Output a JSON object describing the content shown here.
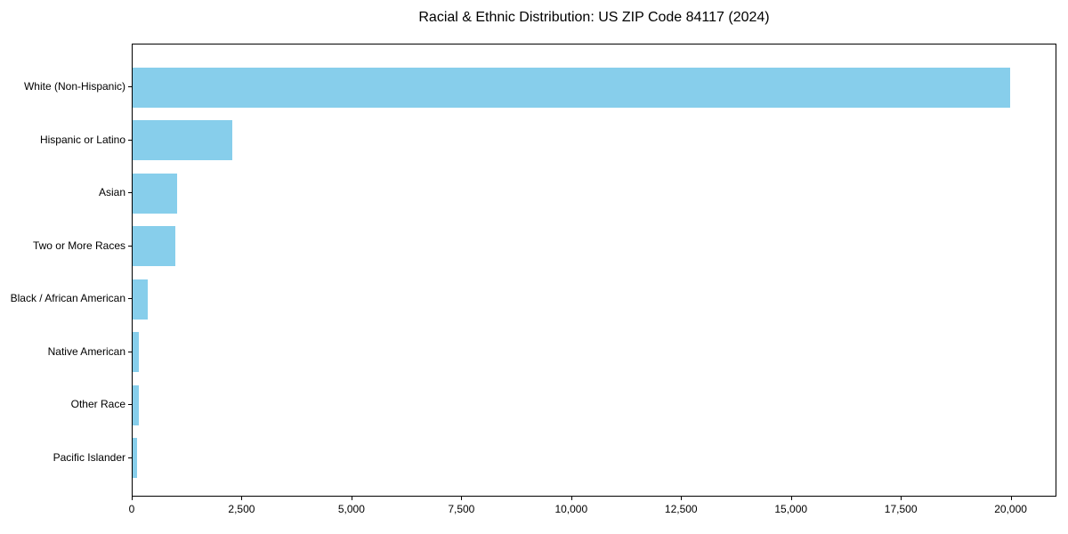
{
  "figure": {
    "title": "Racial & Ethnic Distribution: US ZIP Code 84117 (2024)",
    "background_color": "#ffffff",
    "text_color": "#000000"
  },
  "chart_data": {
    "type": "bar",
    "orientation": "horizontal",
    "title": "Racial & Ethnic Distribution: US ZIP Code 84117 (2024)",
    "categories": [
      "White (Non-Hispanic)",
      "Hispanic or Latino",
      "Asian",
      "Two or More Races",
      "Black / African American",
      "Native American",
      "Other Race",
      "Pacific Islander"
    ],
    "values": [
      19960,
      2260,
      1020,
      975,
      340,
      140,
      140,
      110
    ],
    "xlabel": "",
    "ylabel": "",
    "xlim": [
      0,
      21000
    ],
    "x_ticks": [
      0,
      2500,
      5000,
      7500,
      10000,
      12500,
      15000,
      17500,
      20000
    ],
    "x_tick_labels": [
      "0",
      "2,500",
      "5,000",
      "7,500",
      "10,000",
      "12,500",
      "15,000",
      "17,500",
      "20,000"
    ],
    "bar_color": "#87CEEB",
    "grid": false,
    "legend": null
  }
}
